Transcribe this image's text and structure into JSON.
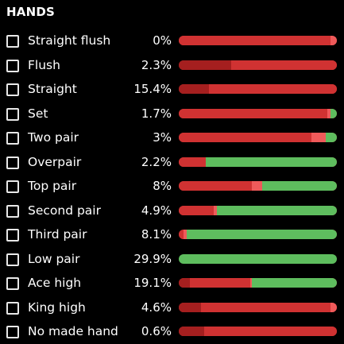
{
  "title": "HANDS",
  "colors": {
    "dark_red": "#a51f1f",
    "red": "#d03232",
    "light_red": "#ef5a5a",
    "green": "#5ebd5e",
    "background": "#000000"
  },
  "hands": [
    {
      "label": "Straight flush",
      "pct": "0%",
      "segments": [
        {
          "color": "red",
          "frac": 0.96
        },
        {
          "color": "light_red",
          "frac": 0.04
        }
      ]
    },
    {
      "label": "Flush",
      "pct": "2.3%",
      "segments": [
        {
          "color": "dark_red",
          "frac": 0.33
        },
        {
          "color": "red",
          "frac": 0.67
        }
      ]
    },
    {
      "label": "Straight",
      "pct": "15.4%",
      "segments": [
        {
          "color": "dark_red",
          "frac": 0.19
        },
        {
          "color": "red",
          "frac": 0.81
        }
      ]
    },
    {
      "label": "Set",
      "pct": "1.7%",
      "segments": [
        {
          "color": "red",
          "frac": 0.94
        },
        {
          "color": "light_red",
          "frac": 0.02
        },
        {
          "color": "green",
          "frac": 0.04
        }
      ]
    },
    {
      "label": "Two pair",
      "pct": "3%",
      "segments": [
        {
          "color": "red",
          "frac": 0.84
        },
        {
          "color": "light_red",
          "frac": 0.09
        },
        {
          "color": "green",
          "frac": 0.07
        }
      ]
    },
    {
      "label": "Overpair",
      "pct": "2.2%",
      "segments": [
        {
          "color": "red",
          "frac": 0.17
        },
        {
          "color": "green",
          "frac": 0.83
        }
      ]
    },
    {
      "label": "Top pair",
      "pct": "8%",
      "segments": [
        {
          "color": "red",
          "frac": 0.46
        },
        {
          "color": "light_red",
          "frac": 0.07
        },
        {
          "color": "green",
          "frac": 0.47
        }
      ]
    },
    {
      "label": "Second pair",
      "pct": "4.9%",
      "segments": [
        {
          "color": "red",
          "frac": 0.22
        },
        {
          "color": "light_red",
          "frac": 0.02
        },
        {
          "color": "green",
          "frac": 0.76
        }
      ]
    },
    {
      "label": "Third pair",
      "pct": "8.1%",
      "segments": [
        {
          "color": "red",
          "frac": 0.03
        },
        {
          "color": "light_red",
          "frac": 0.02
        },
        {
          "color": "green",
          "frac": 0.95
        }
      ]
    },
    {
      "label": "Low pair",
      "pct": "29.9%",
      "segments": [
        {
          "color": "green",
          "frac": 1.0
        }
      ]
    },
    {
      "label": "Ace high",
      "pct": "19.1%",
      "segments": [
        {
          "color": "dark_red",
          "frac": 0.07
        },
        {
          "color": "red",
          "frac": 0.38
        },
        {
          "color": "light_red",
          "frac": 0.01
        },
        {
          "color": "green",
          "frac": 0.54
        }
      ]
    },
    {
      "label": "King high",
      "pct": "4.6%",
      "segments": [
        {
          "color": "dark_red",
          "frac": 0.14
        },
        {
          "color": "red",
          "frac": 0.82
        },
        {
          "color": "light_red",
          "frac": 0.04
        }
      ]
    },
    {
      "label": "No made hand",
      "pct": "0.6%",
      "segments": [
        {
          "color": "dark_red",
          "frac": 0.16
        },
        {
          "color": "red",
          "frac": 0.84
        }
      ]
    }
  ]
}
